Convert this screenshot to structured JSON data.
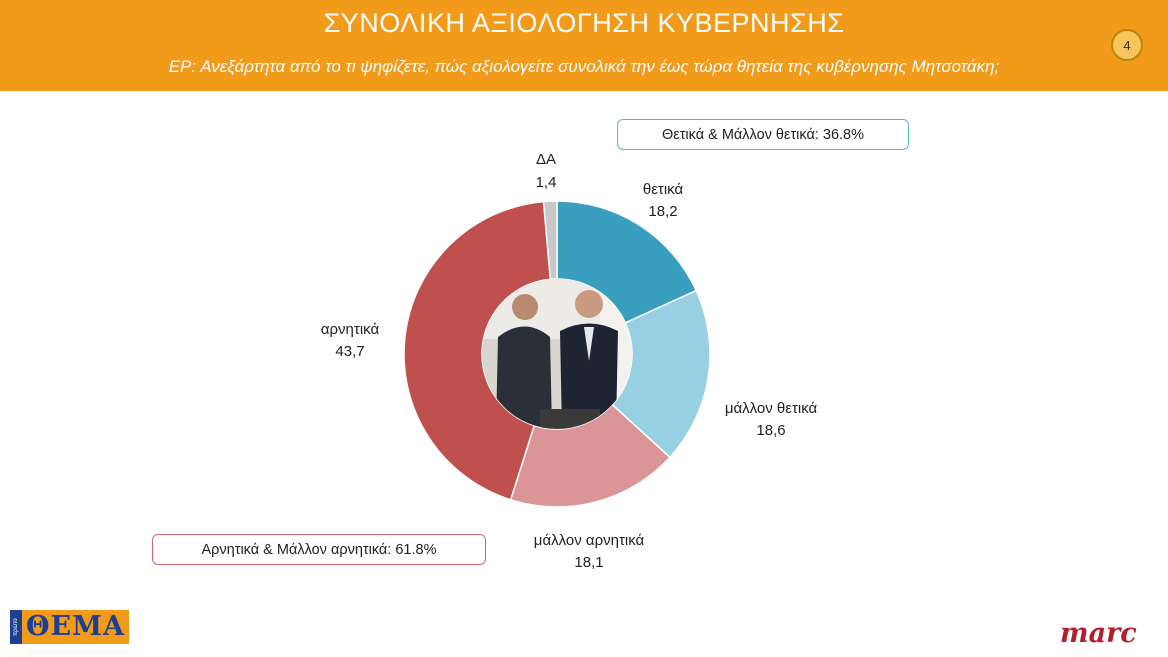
{
  "header": {
    "title": "ΣΥΝΟΛΙΚΗ ΑΞΙΟΛΟΓΗΣΗ ΚΥΒΕΡΝΗΣΗΣ",
    "subtitle": "ΕΡ: Ανεξάρτητα από το τι ψηφίζετε, πώς αξιολογείτε συνολικά την έως τώρα θητεία της κυβέρνησης Μητσοτάκη;",
    "page_number": "4"
  },
  "summaries": {
    "positive": "Θετικά & Μάλλον θετικά: 36.8%",
    "negative": "Αρνητικά & Μάλλον αρνητικά: 61.8%"
  },
  "logos": {
    "left_small": "πρώτο",
    "left": "ΘΕΜΑ",
    "right": "marc"
  },
  "colors": {
    "header_bg": "#f29a1a",
    "positive": "#3a9fbf",
    "somewhat_positive": "#97d0e2",
    "somewhat_negative": "#dc9597",
    "negative": "#c0504d",
    "dk": "#c8c8c8"
  },
  "chart_data": {
    "type": "pie",
    "donut": true,
    "center_image": "photo of two men in suits",
    "slices": [
      {
        "label": "θετικά",
        "value": 18.2,
        "display": "18,2",
        "color": "#3a9fbf"
      },
      {
        "label": "μάλλον θετικά",
        "value": 18.6,
        "display": "18,6",
        "color": "#97d0e2"
      },
      {
        "label": "μάλλον αρνητικά",
        "value": 18.1,
        "display": "18,1",
        "color": "#dc9597"
      },
      {
        "label": "αρνητικά",
        "value": 43.7,
        "display": "43,7",
        "color": "#c0504d"
      },
      {
        "label": "ΔΑ",
        "value": 1.4,
        "display": "1,4",
        "color": "#c8c8c8"
      }
    ]
  }
}
